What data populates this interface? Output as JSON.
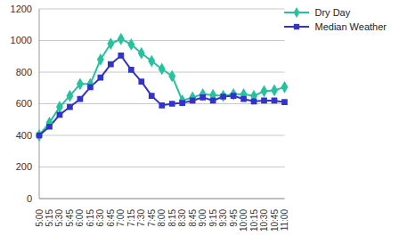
{
  "chart_data": {
    "type": "line",
    "categories": [
      "5:00",
      "5:15",
      "5:30",
      "5:45",
      "6:00",
      "6:15",
      "6:30",
      "6:45",
      "7:00",
      "7:15",
      "7:30",
      "7:45",
      "8:00",
      "8:15",
      "8:30",
      "8:45",
      "9:00",
      "9:15",
      "9:30",
      "9:45",
      "10:00",
      "10:15",
      "10:30",
      "10:45",
      "11:00"
    ],
    "series": [
      {
        "name": "Dry Day",
        "color": "#26c29e",
        "marker": "diamond",
        "values": [
          400,
          480,
          580,
          650,
          725,
          725,
          880,
          980,
          1010,
          975,
          920,
          870,
          820,
          775,
          620,
          640,
          660,
          655,
          650,
          660,
          660,
          650,
          680,
          685,
          705
        ]
      },
      {
        "name": "Median Weather",
        "color": "#3333cc",
        "marker": "square",
        "values": [
          400,
          455,
          530,
          580,
          630,
          705,
          765,
          850,
          905,
          815,
          740,
          650,
          590,
          600,
          605,
          620,
          640,
          620,
          645,
          650,
          630,
          615,
          620,
          620,
          610
        ]
      }
    ],
    "ylim": [
      0,
      1200
    ],
    "yticks": [
      0,
      200,
      400,
      600,
      800,
      1000,
      1200
    ],
    "grid": true,
    "legend": "upper right"
  }
}
